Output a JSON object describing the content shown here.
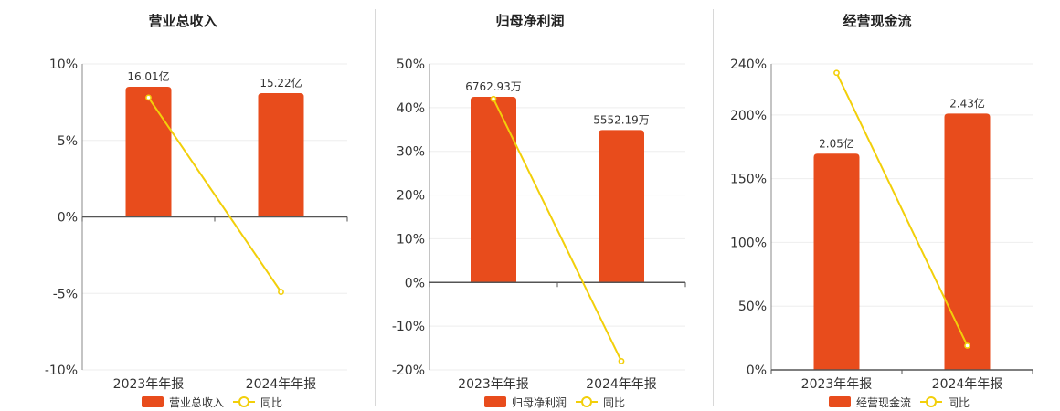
{
  "colors": {
    "bar": "#e84c1c",
    "line": "#f2cf0a",
    "grid": "#eeeeee",
    "axis": "#555555",
    "text": "#333333",
    "divider": "#d8d8d8"
  },
  "legend": {
    "line_label": "同比"
  },
  "chart_data": [
    {
      "type": "bar",
      "title": "营业总收入",
      "categories": [
        "2023年年报",
        "2024年年报"
      ],
      "bar_series_name": "营业总收入",
      "bar_values": [
        16.01,
        15.22
      ],
      "bar_labels": [
        "16.01亿",
        "15.22亿"
      ],
      "line_series_name": "同比",
      "line_values": [
        7.8,
        -4.9
      ],
      "ylim": [
        -10,
        10
      ],
      "yticks": [
        10,
        5,
        0,
        -5,
        -10
      ],
      "ytick_labels": [
        "10%",
        "5%",
        "0%",
        "-5%",
        "-10%"
      ],
      "grid": true,
      "legend_position": "bottom"
    },
    {
      "type": "bar",
      "title": "归母净利润",
      "categories": [
        "2023年年报",
        "2024年年报"
      ],
      "bar_series_name": "归母净利润",
      "bar_values": [
        6762.93,
        5552.19
      ],
      "bar_labels": [
        "6762.93万",
        "5552.19万"
      ],
      "line_series_name": "同比",
      "line_values": [
        42,
        -18
      ],
      "ylim": [
        -20,
        50
      ],
      "yticks": [
        50,
        40,
        30,
        20,
        10,
        0,
        -10,
        -20
      ],
      "ytick_labels": [
        "50%",
        "40%",
        "30%",
        "20%",
        "10%",
        "0%",
        "-10%",
        "-20%"
      ],
      "grid": true,
      "legend_position": "bottom"
    },
    {
      "type": "bar",
      "title": "经营现金流",
      "categories": [
        "2023年年报",
        "2024年年报"
      ],
      "bar_series_name": "经营现金流",
      "bar_values": [
        2.05,
        2.43
      ],
      "bar_labels": [
        "2.05亿",
        "2.43亿"
      ],
      "line_series_name": "同比",
      "line_values": [
        233,
        19
      ],
      "ylim": [
        0,
        240
      ],
      "yticks": [
        240,
        200,
        150,
        100,
        50,
        0
      ],
      "ytick_labels": [
        "240%",
        "200%",
        "150%",
        "100%",
        "50%",
        "0%"
      ],
      "grid": true,
      "legend_position": "bottom"
    }
  ]
}
